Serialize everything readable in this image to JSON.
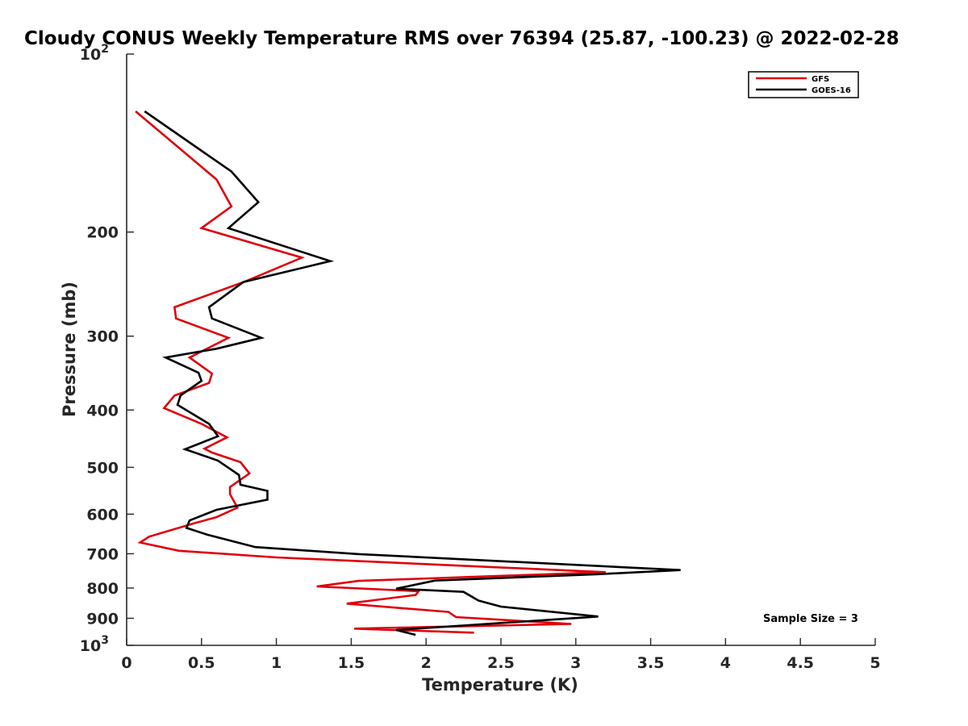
{
  "chart_data": {
    "type": "line",
    "title": "Cloudy CONUS Weekly Temperature RMS over 76394 (25.87, -100.23) @ 2022-02-28",
    "xlabel": "Temperature (K)",
    "ylabel": "Pressure (mb)",
    "xlim": [
      0,
      5
    ],
    "ylim": [
      100,
      1000
    ],
    "y_scale": "log",
    "y_reversed": true,
    "x_ticks": [
      "0",
      "0.5",
      "1",
      "1.5",
      "2",
      "2.5",
      "3",
      "3.5",
      "4",
      "4.5",
      "5"
    ],
    "y_ticks": [
      {
        "value": 100,
        "base": "10",
        "exp": "2"
      },
      {
        "value": 200,
        "label": "200"
      },
      {
        "value": 300,
        "label": "300"
      },
      {
        "value": 400,
        "label": "400"
      },
      {
        "value": 500,
        "label": "500"
      },
      {
        "value": 600,
        "label": "600"
      },
      {
        "value": 700,
        "label": "700"
      },
      {
        "value": 800,
        "label": "800"
      },
      {
        "value": 900,
        "label": "900"
      },
      {
        "value": 1000,
        "base": "10",
        "exp": "3"
      }
    ],
    "grid": false,
    "legend_position": "top-right",
    "annotation": "Sample Size = 3",
    "series": [
      {
        "name": "GFS",
        "color": "#e0000b",
        "points": [
          [
            0.06,
            125
          ],
          [
            0.6,
            163
          ],
          [
            0.7,
            181
          ],
          [
            0.5,
            197
          ],
          [
            1.17,
            221
          ],
          [
            0.8,
            242
          ],
          [
            0.32,
            268
          ],
          [
            0.33,
            280
          ],
          [
            0.68,
            302
          ],
          [
            0.42,
            326
          ],
          [
            0.57,
            347
          ],
          [
            0.55,
            360
          ],
          [
            0.32,
            378
          ],
          [
            0.25,
            397
          ],
          [
            0.5,
            422
          ],
          [
            0.67,
            445
          ],
          [
            0.52,
            465
          ],
          [
            0.57,
            472
          ],
          [
            0.76,
            490
          ],
          [
            0.82,
            512
          ],
          [
            0.69,
            540
          ],
          [
            0.69,
            555
          ],
          [
            0.74,
            585
          ],
          [
            0.6,
            607
          ],
          [
            0.45,
            622
          ],
          [
            0.15,
            655
          ],
          [
            0.09,
            670
          ],
          [
            0.35,
            692
          ],
          [
            1.0,
            710
          ],
          [
            3.2,
            752
          ],
          [
            1.55,
            778
          ],
          [
            1.27,
            795
          ],
          [
            1.95,
            810
          ],
          [
            1.93,
            822
          ],
          [
            1.47,
            850
          ],
          [
            2.15,
            878
          ],
          [
            2.2,
            896
          ],
          [
            2.97,
            920
          ],
          [
            1.52,
            937
          ],
          [
            2.32,
            952
          ]
        ]
      },
      {
        "name": "GOES-16",
        "color": "#000000",
        "points": [
          [
            0.12,
            125
          ],
          [
            0.7,
            158
          ],
          [
            0.88,
            178
          ],
          [
            0.68,
            197
          ],
          [
            1.36,
            224
          ],
          [
            0.78,
            243
          ],
          [
            0.55,
            268
          ],
          [
            0.57,
            280
          ],
          [
            0.9,
            302
          ],
          [
            0.6,
            315
          ],
          [
            0.26,
            326
          ],
          [
            0.48,
            346
          ],
          [
            0.5,
            357
          ],
          [
            0.36,
            378
          ],
          [
            0.34,
            392
          ],
          [
            0.55,
            422
          ],
          [
            0.61,
            443
          ],
          [
            0.39,
            466
          ],
          [
            0.61,
            487
          ],
          [
            0.75,
            515
          ],
          [
            0.76,
            535
          ],
          [
            0.94,
            548
          ],
          [
            0.94,
            567
          ],
          [
            0.6,
            590
          ],
          [
            0.42,
            615
          ],
          [
            0.4,
            633
          ],
          [
            0.54,
            650
          ],
          [
            0.86,
            682
          ],
          [
            1.55,
            701
          ],
          [
            3.7,
            746
          ],
          [
            3.15,
            758
          ],
          [
            2.06,
            777
          ],
          [
            1.8,
            802
          ],
          [
            2.25,
            812
          ],
          [
            2.35,
            840
          ],
          [
            2.5,
            860
          ],
          [
            3.15,
            894
          ],
          [
            1.8,
            942
          ],
          [
            1.93,
            960
          ]
        ]
      }
    ]
  }
}
